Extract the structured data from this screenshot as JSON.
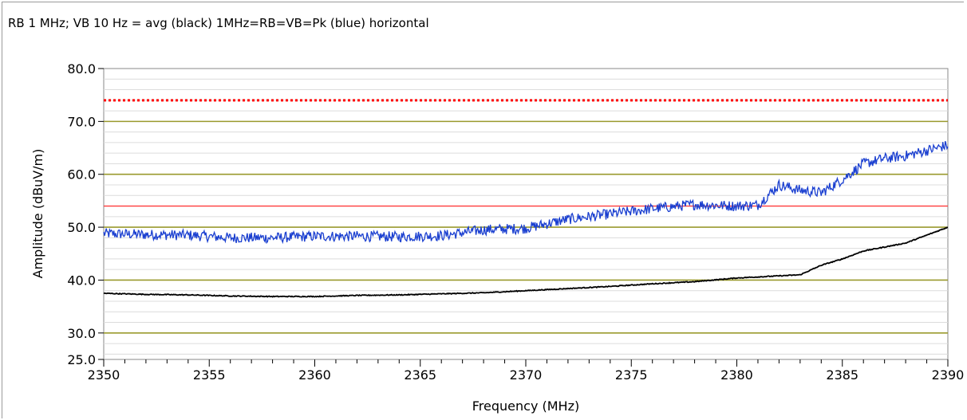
{
  "chart_data": {
    "type": "line",
    "title": "RB 1 MHz; VB 10 Hz = avg (black) 1MHz=RB=VB=Pk (blue) horizontal",
    "xlabel": "Frequency (MHz)",
    "ylabel": "Amplitude (dBuV/m)",
    "xlim": [
      2350,
      2390
    ],
    "ylim": [
      25,
      80
    ],
    "x_ticks": [
      "2350",
      "2355",
      "2360",
      "2365",
      "2370",
      "2375",
      "2380",
      "2385",
      "2390"
    ],
    "y_ticks": [
      "80.0",
      "70.0",
      "60.0",
      "50.0",
      "40.0",
      "30.0",
      "25.0"
    ],
    "grid": true,
    "limit_lines": [
      {
        "value": 74,
        "style": "dotted",
        "color": "#ff0000"
      },
      {
        "value": 54,
        "style": "solid",
        "color": "#ff3a3a"
      }
    ],
    "series": [
      {
        "color": "#1a3fd0",
        "x": [
          2350,
          2352,
          2354,
          2356,
          2358,
          2360,
          2362,
          2364,
          2366,
          2368,
          2370,
          2372,
          2374,
          2376,
          2378,
          2380,
          2381,
          2382,
          2383,
          2384,
          2385,
          2386,
          2387,
          2388,
          2389,
          2390
        ],
        "values": [
          48.8,
          48.6,
          48.5,
          48.0,
          48.0,
          48.3,
          48.3,
          48.2,
          48.4,
          49.5,
          49.8,
          51.5,
          52.5,
          53.5,
          54.3,
          54.0,
          54.2,
          58.0,
          57.0,
          56.5,
          59.0,
          62.0,
          63.0,
          63.5,
          64.5,
          65.5
        ],
        "noise": 1.0
      },
      {
        "color": "#000000",
        "x": [
          2350,
          2352,
          2354,
          2356,
          2358,
          2360,
          2362,
          2364,
          2366,
          2368,
          2370,
          2372,
          2374,
          2376,
          2378,
          2380,
          2382,
          2383,
          2384,
          2385,
          2386,
          2388,
          2390
        ],
        "values": [
          37.5,
          37.3,
          37.2,
          37.0,
          36.9,
          36.9,
          37.1,
          37.2,
          37.4,
          37.6,
          38.0,
          38.4,
          38.8,
          39.3,
          39.7,
          40.4,
          40.8,
          41.0,
          42.8,
          44.0,
          45.5,
          47.0,
          50.0
        ],
        "noise": 0.08
      }
    ]
  }
}
